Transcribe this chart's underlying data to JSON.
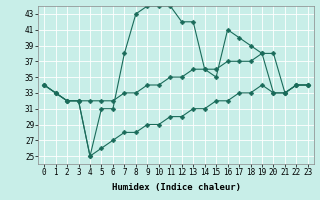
{
  "xlabel": "Humidex (Indice chaleur)",
  "background_color": "#c8eee8",
  "grid_color": "#aadddd",
  "line_color": "#1a6b5a",
  "x_values": [
    0,
    1,
    2,
    3,
    4,
    5,
    6,
    7,
    8,
    9,
    10,
    11,
    12,
    13,
    14,
    15,
    16,
    17,
    18,
    19,
    20,
    21,
    22,
    23
  ],
  "line1": [
    34,
    33,
    32,
    32,
    25,
    31,
    31,
    38,
    43,
    44,
    44,
    44,
    42,
    42,
    36,
    35,
    41,
    40,
    39,
    38,
    38,
    33,
    34,
    34
  ],
  "line2": [
    34,
    33,
    32,
    32,
    32,
    32,
    32,
    33,
    33,
    34,
    34,
    35,
    35,
    36,
    36,
    36,
    37,
    37,
    37,
    38,
    33,
    33,
    34,
    34
  ],
  "line3": [
    34,
    33,
    32,
    32,
    25,
    26,
    27,
    28,
    28,
    29,
    29,
    30,
    30,
    31,
    31,
    32,
    32,
    33,
    33,
    34,
    33,
    33,
    34,
    34
  ],
  "ylim": [
    24,
    44
  ],
  "xlim": [
    -0.5,
    23.5
  ],
  "yticks": [
    25,
    27,
    29,
    31,
    33,
    35,
    37,
    39,
    41,
    43
  ],
  "xticks": [
    0,
    1,
    2,
    3,
    4,
    5,
    6,
    7,
    8,
    9,
    10,
    11,
    12,
    13,
    14,
    15,
    16,
    17,
    18,
    19,
    20,
    21,
    22,
    23
  ],
  "markersize": 2.5,
  "linewidth": 0.8,
  "label_fontsize": 6.5,
  "tick_fontsize": 5.5
}
